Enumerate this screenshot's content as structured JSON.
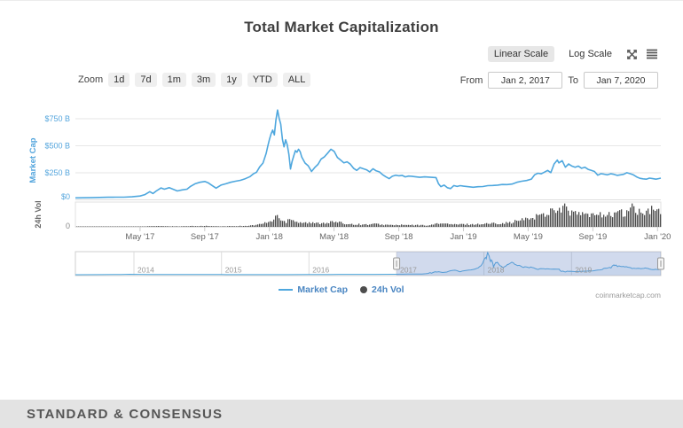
{
  "header": {
    "title": "Total Market Capitalization"
  },
  "controls": {
    "scale": {
      "linear": "Linear Scale",
      "log": "Log Scale",
      "active_scale": "Linear Scale"
    },
    "icons": {
      "expand": "expand-arrows-icon",
      "menu": "hamburger-menu-icon"
    },
    "zoom": {
      "label": "Zoom",
      "buttons": [
        "1d",
        "7d",
        "1m",
        "3m",
        "1y",
        "YTD",
        "ALL"
      ]
    },
    "range": {
      "from_label": "From",
      "from_value": "Jan 2, 2017",
      "to_label": "To",
      "to_value": "Jan 7, 2020"
    }
  },
  "legend": {
    "items": [
      {
        "label": "Market Cap",
        "marker": "line",
        "color": "#4ea7de"
      },
      {
        "label": "24h Vol",
        "marker": "circle",
        "color": "#4d4d4d"
      }
    ]
  },
  "attribution": "coinmarketcap.com",
  "footer": {
    "brand": "STANDARD & CONSENSUS"
  },
  "colors": {
    "line_blue": "#4ea7de",
    "volume_gray": "#4d4d4d",
    "grid": "#e6e6e6",
    "axis_label_blue": "#55a6dd",
    "axis_label_gray": "#666666",
    "navigator_mask": "rgba(102,133,194,0.3)",
    "footer_bg": "#e3e3e3"
  },
  "chart_data": {
    "type": "line",
    "title": "Total Market Capitalization",
    "units": "USD billions",
    "x_axis": {
      "unit": "months since Jan 2017",
      "range": [
        0,
        36.2
      ],
      "tick_months": [
        4,
        8,
        12,
        16,
        20,
        24,
        28,
        32,
        36
      ],
      "tick_labels": [
        "May '17",
        "Sep '17",
        "Jan '18",
        "May '18",
        "Sep '18",
        "Jan '19",
        "May '19",
        "Sep '19",
        "Jan '20"
      ]
    },
    "market_cap": {
      "name": "Market Cap",
      "axis_title": "Market Cap",
      "color": "#4ea7de",
      "ylim": [
        0,
        900
      ],
      "ticks": [
        {
          "v": 750,
          "label": "$750 B"
        },
        {
          "v": 500,
          "label": "$500 B"
        },
        {
          "v": 250,
          "label": "$250 B"
        },
        {
          "v": 0,
          "label": "$0"
        }
      ],
      "points": [
        [
          0,
          18
        ],
        [
          0.5,
          19
        ],
        [
          1,
          20
        ],
        [
          1.5,
          22
        ],
        [
          2,
          24
        ],
        [
          2.5,
          25
        ],
        [
          3,
          25
        ],
        [
          3.5,
          28
        ],
        [
          4,
          35
        ],
        [
          4.3,
          48
        ],
        [
          4.6,
          75
        ],
        [
          4.8,
          58
        ],
        [
          5,
          82
        ],
        [
          5.3,
          110
        ],
        [
          5.5,
          98
        ],
        [
          5.8,
          112
        ],
        [
          6,
          100
        ],
        [
          6.3,
          82
        ],
        [
          6.6,
          92
        ],
        [
          6.9,
          98
        ],
        [
          7.1,
          122
        ],
        [
          7.4,
          148
        ],
        [
          7.7,
          162
        ],
        [
          8,
          170
        ],
        [
          8.2,
          158
        ],
        [
          8.5,
          128
        ],
        [
          8.7,
          108
        ],
        [
          9,
          136
        ],
        [
          9.3,
          148
        ],
        [
          9.6,
          162
        ],
        [
          9.9,
          172
        ],
        [
          10.2,
          180
        ],
        [
          10.5,
          195
        ],
        [
          10.8,
          215
        ],
        [
          11,
          240
        ],
        [
          11.2,
          255
        ],
        [
          11.4,
          305
        ],
        [
          11.6,
          340
        ],
        [
          11.8,
          430
        ],
        [
          11.9,
          500
        ],
        [
          12,
          560
        ],
        [
          12.1,
          610
        ],
        [
          12.2,
          645
        ],
        [
          12.3,
          600
        ],
        [
          12.4,
          740
        ],
        [
          12.5,
          830
        ],
        [
          12.6,
          755
        ],
        [
          12.7,
          700
        ],
        [
          12.8,
          560
        ],
        [
          12.9,
          490
        ],
        [
          13,
          555
        ],
        [
          13.1,
          510
        ],
        [
          13.2,
          420
        ],
        [
          13.3,
          285
        ],
        [
          13.4,
          355
        ],
        [
          13.5,
          405
        ],
        [
          13.6,
          455
        ],
        [
          13.7,
          440
        ],
        [
          13.8,
          468
        ],
        [
          13.9,
          445
        ],
        [
          14,
          395
        ],
        [
          14.2,
          340
        ],
        [
          14.4,
          315
        ],
        [
          14.6,
          262
        ],
        [
          14.8,
          298
        ],
        [
          15,
          328
        ],
        [
          15.2,
          378
        ],
        [
          15.4,
          398
        ],
        [
          15.6,
          432
        ],
        [
          15.8,
          468
        ],
        [
          16,
          448
        ],
        [
          16.2,
          392
        ],
        [
          16.4,
          368
        ],
        [
          16.6,
          342
        ],
        [
          16.8,
          352
        ],
        [
          17,
          330
        ],
        [
          17.2,
          292
        ],
        [
          17.4,
          272
        ],
        [
          17.6,
          298
        ],
        [
          17.8,
          288
        ],
        [
          18,
          278
        ],
        [
          18.2,
          258
        ],
        [
          18.4,
          288
        ],
        [
          18.6,
          268
        ],
        [
          18.8,
          258
        ],
        [
          19,
          232
        ],
        [
          19.2,
          212
        ],
        [
          19.4,
          196
        ],
        [
          19.6,
          218
        ],
        [
          19.8,
          228
        ],
        [
          20,
          222
        ],
        [
          20.2,
          226
        ],
        [
          20.4,
          212
        ],
        [
          20.6,
          220
        ],
        [
          20.8,
          218
        ],
        [
          21,
          214
        ],
        [
          21.3,
          208
        ],
        [
          21.6,
          212
        ],
        [
          22,
          208
        ],
        [
          22.3,
          206
        ],
        [
          22.45,
          150
        ],
        [
          22.6,
          122
        ],
        [
          22.8,
          136
        ],
        [
          23,
          112
        ],
        [
          23.2,
          104
        ],
        [
          23.4,
          132
        ],
        [
          23.6,
          124
        ],
        [
          23.8,
          131
        ],
        [
          24,
          126
        ],
        [
          24.3,
          121
        ],
        [
          24.6,
          116
        ],
        [
          24.9,
          121
        ],
        [
          25.2,
          123
        ],
        [
          25.5,
          131
        ],
        [
          25.8,
          133
        ],
        [
          26.1,
          136
        ],
        [
          26.4,
          142
        ],
        [
          26.7,
          141
        ],
        [
          27,
          146
        ],
        [
          27.3,
          162
        ],
        [
          27.6,
          172
        ],
        [
          27.9,
          179
        ],
        [
          28.2,
          192
        ],
        [
          28.4,
          232
        ],
        [
          28.6,
          246
        ],
        [
          28.8,
          241
        ],
        [
          29,
          256
        ],
        [
          29.2,
          272
        ],
        [
          29.4,
          252
        ],
        [
          29.6,
          332
        ],
        [
          29.8,
          368
        ],
        [
          29.9,
          342
        ],
        [
          30.1,
          362
        ],
        [
          30.3,
          302
        ],
        [
          30.5,
          332
        ],
        [
          30.7,
          312
        ],
        [
          30.9,
          302
        ],
        [
          31.1,
          312
        ],
        [
          31.3,
          292
        ],
        [
          31.5,
          302
        ],
        [
          31.7,
          282
        ],
        [
          31.9,
          272
        ],
        [
          32.1,
          262
        ],
        [
          32.3,
          228
        ],
        [
          32.5,
          242
        ],
        [
          32.7,
          237
        ],
        [
          32.9,
          231
        ],
        [
          33.1,
          241
        ],
        [
          33.3,
          236
        ],
        [
          33.5,
          226
        ],
        [
          33.7,
          231
        ],
        [
          33.9,
          236
        ],
        [
          34.1,
          251
        ],
        [
          34.3,
          242
        ],
        [
          34.5,
          231
        ],
        [
          34.7,
          212
        ],
        [
          34.9,
          199
        ],
        [
          35.1,
          194
        ],
        [
          35.3,
          191
        ],
        [
          35.5,
          201
        ],
        [
          35.7,
          196
        ],
        [
          35.9,
          191
        ],
        [
          36.05,
          196
        ],
        [
          36.2,
          201
        ]
      ]
    },
    "volume": {
      "name": "24h Vol",
      "type": "column",
      "axis_title": "24h Vol",
      "color": "#4d4d4d",
      "ylim": [
        0,
        140
      ],
      "ticks": [
        {
          "v": 0,
          "label": "0"
        }
      ],
      "envelope_points": [
        [
          0,
          0.2
        ],
        [
          1,
          0.25
        ],
        [
          2,
          0.4
        ],
        [
          3,
          0.7
        ],
        [
          4,
          1.5
        ],
        [
          4.5,
          3.5
        ],
        [
          5,
          4.5
        ],
        [
          5.5,
          4
        ],
        [
          6,
          3
        ],
        [
          6.5,
          2.5
        ],
        [
          7,
          4
        ],
        [
          7.5,
          4.5
        ],
        [
          8,
          5
        ],
        [
          8.5,
          3.5
        ],
        [
          9,
          3
        ],
        [
          9.5,
          4
        ],
        [
          10,
          4.5
        ],
        [
          10.5,
          6
        ],
        [
          11,
          9
        ],
        [
          11.3,
          14
        ],
        [
          11.6,
          20
        ],
        [
          12,
          28
        ],
        [
          12.2,
          40
        ],
        [
          12.4,
          70
        ],
        [
          12.6,
          45
        ],
        [
          12.8,
          30
        ],
        [
          13,
          28
        ],
        [
          13.2,
          60
        ],
        [
          13.4,
          40
        ],
        [
          13.6,
          30
        ],
        [
          14,
          25
        ],
        [
          14.5,
          22
        ],
        [
          15,
          20
        ],
        [
          15.5,
          25
        ],
        [
          16,
          28
        ],
        [
          16.5,
          20
        ],
        [
          17,
          16
        ],
        [
          17.5,
          14
        ],
        [
          18,
          13
        ],
        [
          18.5,
          16
        ],
        [
          19,
          12
        ],
        [
          19.5,
          10
        ],
        [
          20,
          11
        ],
        [
          20.5,
          10
        ],
        [
          21,
          10
        ],
        [
          21.5,
          9
        ],
        [
          22,
          10
        ],
        [
          22.4,
          22
        ],
        [
          22.7,
          18
        ],
        [
          23,
          16
        ],
        [
          23.3,
          14
        ],
        [
          23.6,
          13
        ],
        [
          24,
          15
        ],
        [
          24.5,
          14
        ],
        [
          25,
          16
        ],
        [
          25.5,
          18
        ],
        [
          26,
          20
        ],
        [
          26.5,
          22
        ],
        [
          27,
          25
        ],
        [
          27.3,
          35
        ],
        [
          27.6,
          40
        ],
        [
          28,
          45
        ],
        [
          28.3,
          55
        ],
        [
          28.6,
          65
        ],
        [
          29,
          70
        ],
        [
          29.3,
          85
        ],
        [
          29.6,
          120
        ],
        [
          29.8,
          90
        ],
        [
          30,
          95
        ],
        [
          30.3,
          110
        ],
        [
          30.6,
          80
        ],
        [
          31,
          70
        ],
        [
          31.3,
          75
        ],
        [
          31.6,
          65
        ],
        [
          32,
          60
        ],
        [
          32.3,
          85
        ],
        [
          32.6,
          70
        ],
        [
          33,
          65
        ],
        [
          33.3,
          75
        ],
        [
          33.6,
          90
        ],
        [
          33.8,
          70
        ],
        [
          34,
          65
        ],
        [
          34.3,
          130
        ],
        [
          34.6,
          85
        ],
        [
          35,
          80
        ],
        [
          35.3,
          75
        ],
        [
          35.6,
          95
        ],
        [
          36,
          90
        ],
        [
          36.2,
          100
        ]
      ]
    },
    "navigator": {
      "year_range": [
        2013.33,
        2020.02
      ],
      "year_ticks": [
        2014,
        2015,
        2016,
        2017,
        2018,
        2019
      ],
      "year_tick_labels": [
        "2014",
        "2015",
        "2016",
        "2017",
        "2018",
        "2019"
      ],
      "selected_year_range": [
        2017.0,
        2020.02
      ],
      "mask_color": "rgba(102,133,194,0.3)",
      "history_points": [
        [
          2013.33,
          1.2
        ],
        [
          2013.35,
          1.5
        ],
        [
          2013.6,
          4
        ],
        [
          2013.85,
          10
        ],
        [
          2013.95,
          15
        ],
        [
          2014.05,
          13
        ],
        [
          2014.2,
          9
        ],
        [
          2014.4,
          8
        ],
        [
          2014.6,
          7
        ],
        [
          2014.8,
          6
        ],
        [
          2015,
          5
        ],
        [
          2015.25,
          4.5
        ],
        [
          2015.5,
          4
        ],
        [
          2015.75,
          4.5
        ],
        [
          2016,
          7
        ],
        [
          2016.25,
          9
        ],
        [
          2016.5,
          12
        ],
        [
          2016.75,
          13
        ],
        [
          2016.95,
          15
        ]
      ]
    }
  }
}
